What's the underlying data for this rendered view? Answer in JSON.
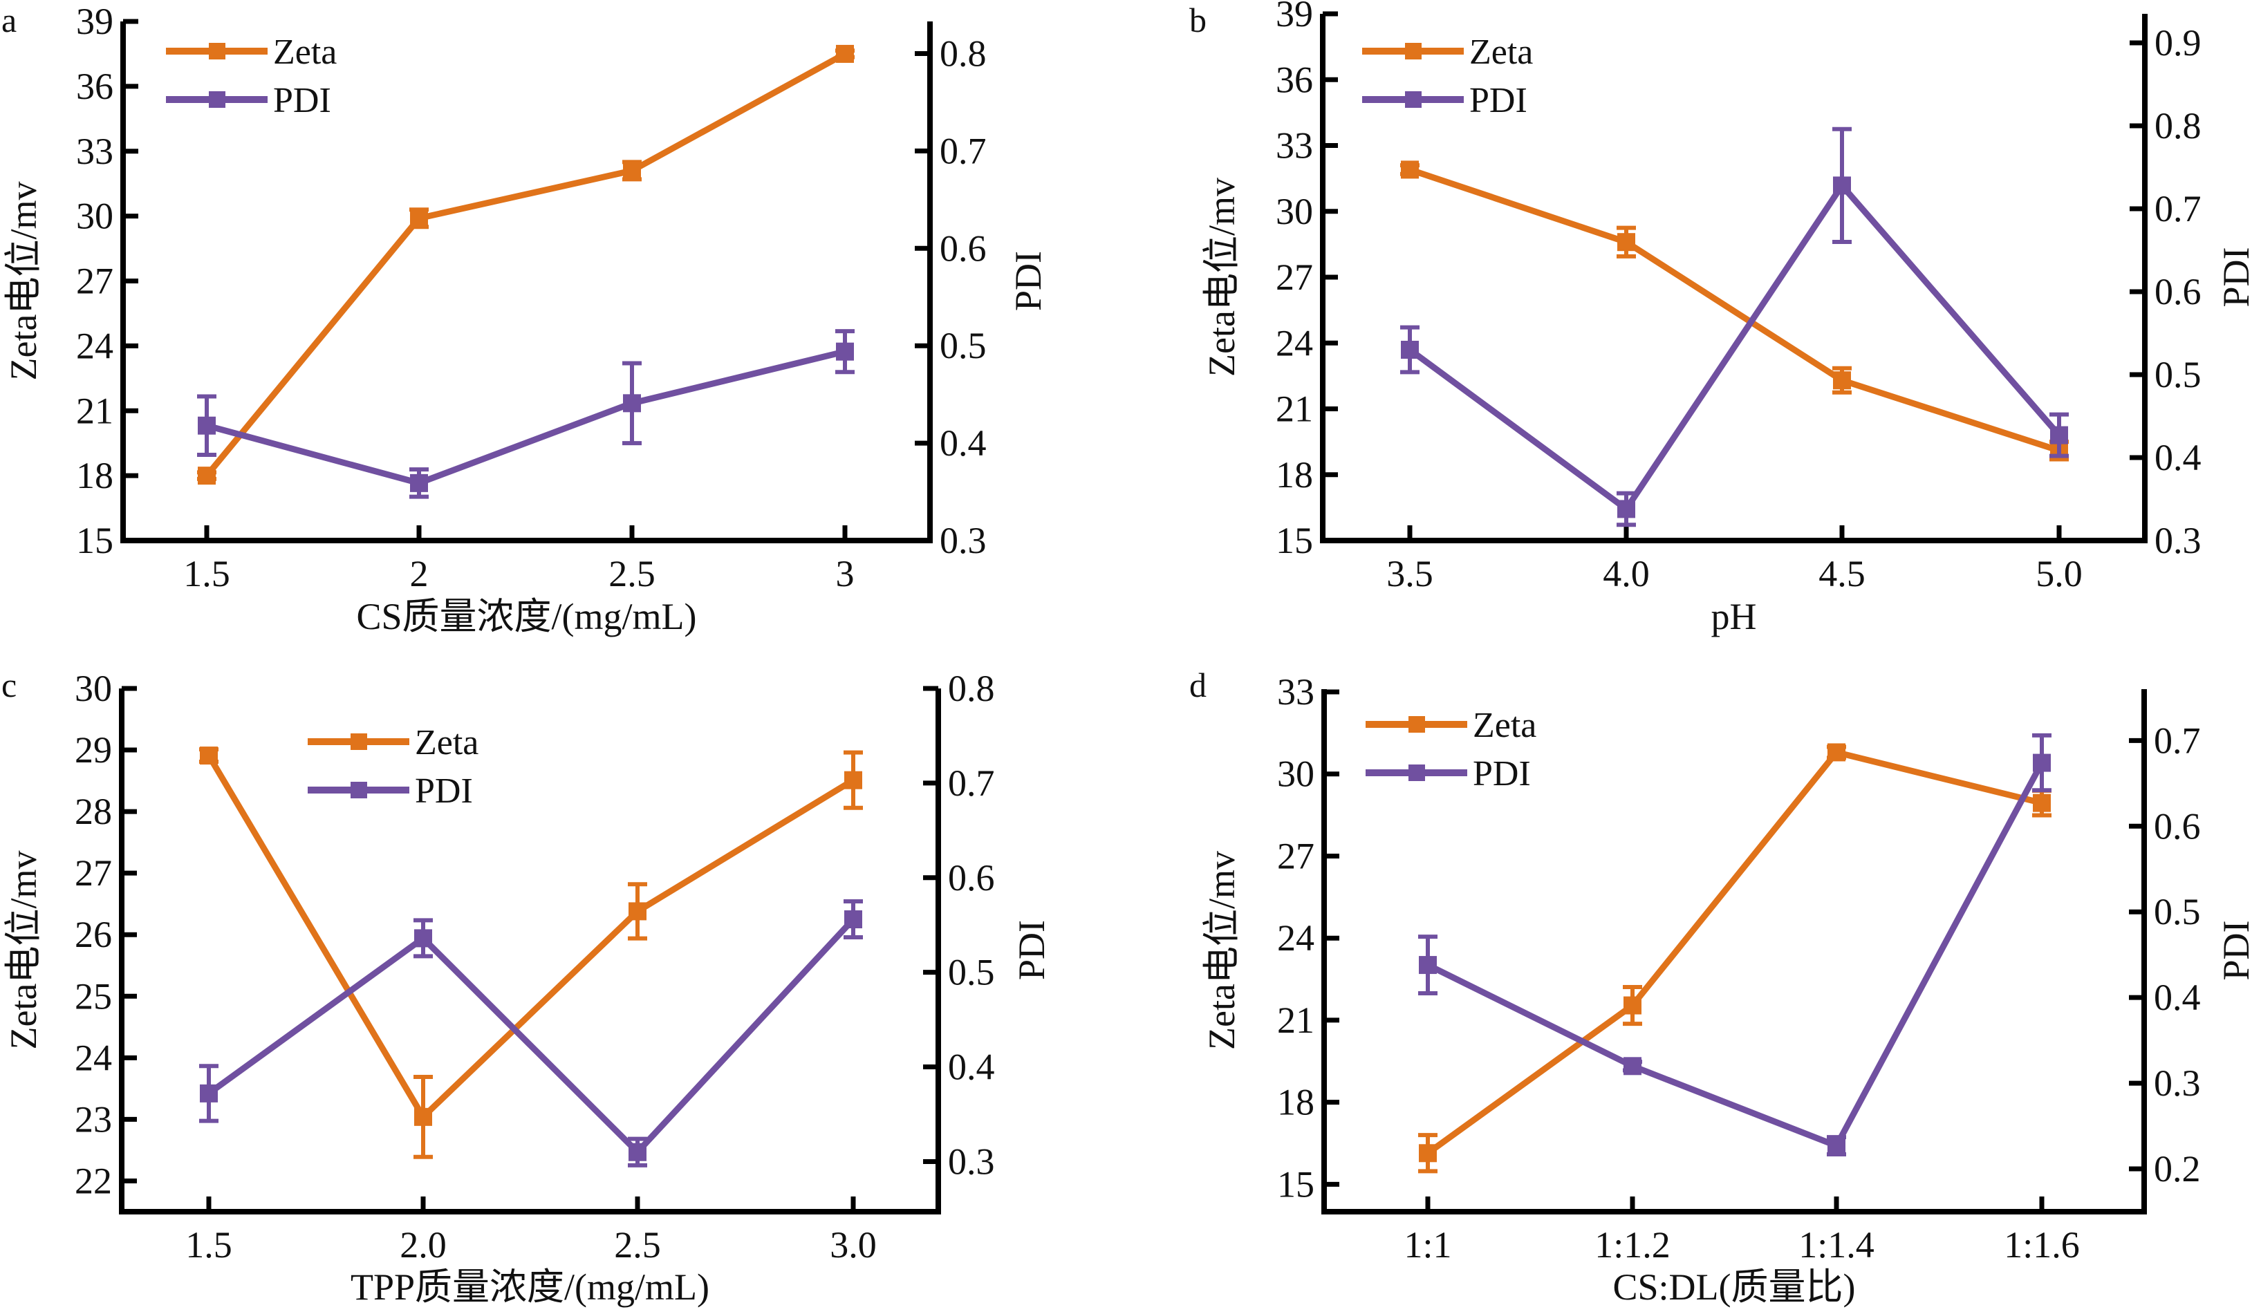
{
  "figure": {
    "colors": {
      "zeta": "#E0731A",
      "pdi": "#7050A0",
      "axis": "#000000"
    }
  },
  "chart_data": [
    {
      "id": "a",
      "type": "line",
      "panel_label": "a",
      "xlabel": "CS质量浓度/(mg/mL)",
      "ylabel": "Zeta电位/mv",
      "y2label": "PDI",
      "categories": [
        "1.5",
        "2",
        "2.5",
        "3"
      ],
      "ylim": [
        15,
        39
      ],
      "yticks": [
        15,
        18,
        21,
        24,
        27,
        30,
        33,
        36,
        39
      ],
      "y2lim": [
        0.3,
        0.833
      ],
      "y2ticks": [
        "0.3",
        "0.4",
        "0.5",
        "0.6",
        "0.7",
        "0.8"
      ],
      "legend": {
        "position": "top-left",
        "entries": [
          "Zeta",
          "PDI"
        ]
      },
      "series": [
        {
          "name": "Zeta",
          "axis": "left",
          "values": [
            18.0,
            29.9,
            32.1,
            37.5
          ],
          "errors": [
            0.15,
            0.4,
            0.4,
            0.15
          ]
        },
        {
          "name": "PDI",
          "axis": "right",
          "values": [
            0.418,
            0.359,
            0.441,
            0.494
          ],
          "errors": [
            0.03,
            0.014,
            0.041,
            0.021
          ]
        }
      ]
    },
    {
      "id": "b",
      "type": "line",
      "panel_label": "b",
      "xlabel": "pH",
      "ylabel": "Zeta电位/mv",
      "y2label": "PDI",
      "categories": [
        "3.5",
        "4.0",
        "4.5",
        "5.0"
      ],
      "ylim": [
        15,
        39
      ],
      "yticks": [
        15,
        18,
        21,
        24,
        27,
        30,
        33,
        36,
        39
      ],
      "y2lim": [
        0.3,
        0.935
      ],
      "y2ticks": [
        "0.3",
        "0.4",
        "0.5",
        "0.6",
        "0.7",
        "0.8",
        "0.9"
      ],
      "legend": {
        "position": "top-left",
        "entries": [
          "Zeta",
          "PDI"
        ]
      },
      "series": [
        {
          "name": "Zeta",
          "axis": "left",
          "values": [
            31.9,
            28.6,
            22.3,
            19.1
          ],
          "errors": [
            0.2,
            0.65,
            0.55,
            0.4
          ]
        },
        {
          "name": "PDI",
          "axis": "right",
          "values": [
            0.53,
            0.338,
            0.728,
            0.427
          ],
          "errors": [
            0.027,
            0.019,
            0.068,
            0.025
          ]
        }
      ]
    },
    {
      "id": "c",
      "type": "line",
      "panel_label": "c",
      "xlabel": "TPP质量浓度/(mg/mL)",
      "ylabel": "Zeta电位/mv",
      "y2label": "PDI",
      "categories": [
        "1.5",
        "2.0",
        "2.5",
        "3.0"
      ],
      "ylim": [
        21.5,
        30
      ],
      "yticks": [
        22,
        23,
        24,
        25,
        26,
        27,
        28,
        29,
        30
      ],
      "y2lim": [
        0.247,
        0.8
      ],
      "y2ticks": [
        "0.3",
        "0.4",
        "0.5",
        "0.6",
        "0.7",
        "0.8"
      ],
      "legend": {
        "position": "top-center",
        "entries": [
          "Zeta",
          "PDI"
        ]
      },
      "series": [
        {
          "name": "Zeta",
          "axis": "left",
          "values": [
            28.91,
            23.04,
            26.38,
            28.51
          ],
          "errors": [
            0.1,
            0.65,
            0.44,
            0.45
          ]
        },
        {
          "name": "PDI",
          "axis": "right",
          "values": [
            0.372,
            0.536,
            0.31,
            0.556
          ],
          "errors": [
            0.029,
            0.019,
            0.014,
            0.019
          ]
        }
      ]
    },
    {
      "id": "d",
      "type": "line",
      "panel_label": "d",
      "xlabel": "CS:DL(质量比)",
      "ylabel": "Zeta电位/mv",
      "y2label": "PDI",
      "categories": [
        "1:1",
        "1:1.2",
        "1:1.4",
        "1:1.6"
      ],
      "ylim": [
        14.0,
        33.1
      ],
      "yticks": [
        15,
        18,
        21,
        24,
        27,
        30,
        33
      ],
      "y2lim": [
        0.15,
        0.76
      ],
      "y2ticks": [
        "0.2",
        "0.3",
        "0.4",
        "0.5",
        "0.6",
        "0.7"
      ],
      "legend": {
        "position": "top-left",
        "entries": [
          "Zeta",
          "PDI"
        ]
      },
      "series": [
        {
          "name": "Zeta",
          "axis": "left",
          "values": [
            16.14,
            21.54,
            30.79,
            28.94
          ],
          "errors": [
            0.66,
            0.67,
            0.2,
            0.45
          ]
        },
        {
          "name": "PDI",
          "axis": "right",
          "values": [
            0.438,
            0.32,
            0.227,
            0.674
          ],
          "errors": [
            0.033,
            0.005,
            0.01,
            0.032
          ]
        }
      ]
    }
  ]
}
